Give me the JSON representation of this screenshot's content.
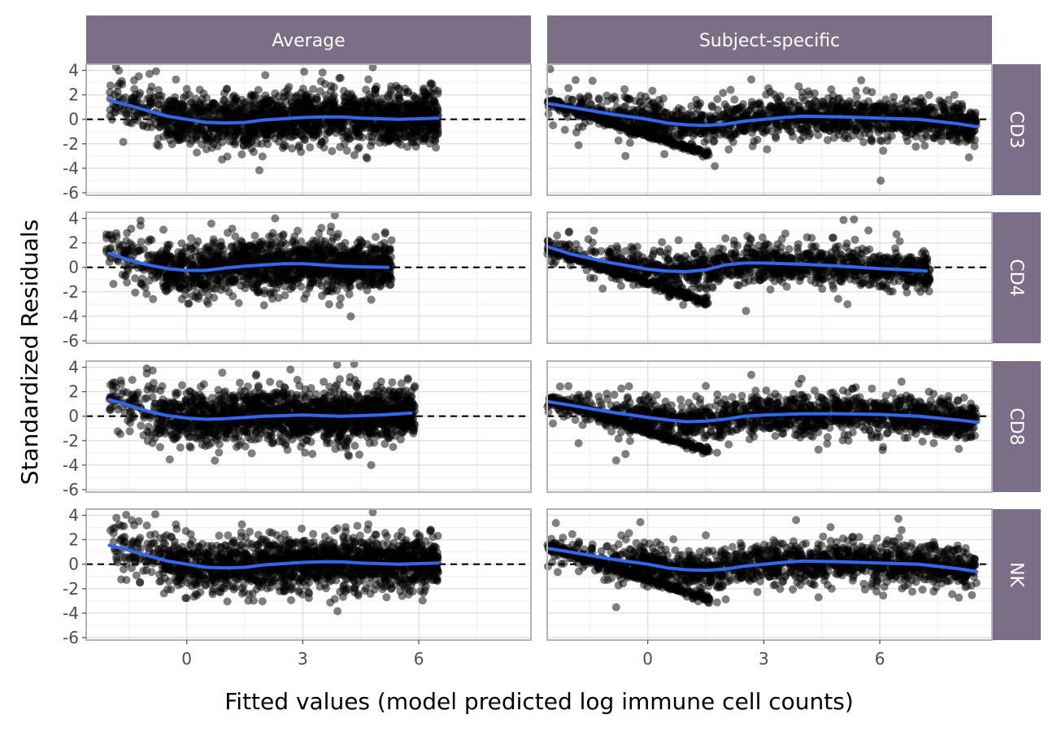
{
  "colors": {
    "strip": "#7b6e86",
    "points": "#000000",
    "smooth": "#3366ee",
    "panel_border": "#b3b3b3",
    "grid_major": "#dcdcdc",
    "grid_minor": "#efefef",
    "ref_line": "#000000",
    "tick_text": "#4d4d4d"
  },
  "chart_data": {
    "type": "scatter",
    "title": "",
    "xlabel": "Fitted values (model predicted log immune cell counts)",
    "ylabel": "Standardized Residuals",
    "facet_columns": [
      "Average",
      "Subject-specific"
    ],
    "facet_rows": [
      "CD3",
      "CD4",
      "CD8",
      "NK"
    ],
    "x_ticks": [
      0,
      3,
      6
    ],
    "y_ticks": [
      4,
      2,
      0,
      -2,
      -4,
      -6
    ],
    "xlim": [
      -2.6,
      8.9
    ],
    "ylim": [
      -6.2,
      4.5
    ],
    "reference_line": {
      "y": 0,
      "style": "dashed"
    },
    "grid": true,
    "legend": "none",
    "panels": [
      {
        "column": "Average",
        "row": "CD3",
        "x_range": [
          -2.0,
          6.5
        ],
        "n_points": 1700,
        "smooth": [
          [
            -2.0,
            1.55
          ],
          [
            -1.5,
            1.15
          ],
          [
            -1.0,
            0.7
          ],
          [
            -0.5,
            0.25
          ],
          [
            0.0,
            0.0
          ],
          [
            0.5,
            -0.25
          ],
          [
            1.0,
            -0.3
          ],
          [
            1.5,
            -0.25
          ],
          [
            2.0,
            -0.05
          ],
          [
            2.5,
            0.05
          ],
          [
            3.0,
            0.15
          ],
          [
            3.5,
            0.2
          ],
          [
            4.0,
            0.2
          ],
          [
            4.5,
            0.1
          ],
          [
            5.0,
            0.05
          ],
          [
            5.5,
            0.0
          ],
          [
            6.0,
            0.05
          ],
          [
            6.5,
            0.1
          ]
        ]
      },
      {
        "column": "Subject-specific",
        "row": "CD3",
        "x_range": [
          -2.6,
          8.5
        ],
        "n_points": 1700,
        "smooth": [
          [
            -2.6,
            1.3
          ],
          [
            -2.0,
            1.0
          ],
          [
            -1.0,
            0.45
          ],
          [
            0.0,
            0.0
          ],
          [
            0.5,
            -0.3
          ],
          [
            1.0,
            -0.45
          ],
          [
            1.5,
            -0.5
          ],
          [
            2.0,
            -0.4
          ],
          [
            2.5,
            -0.15
          ],
          [
            3.0,
            0.0
          ],
          [
            3.5,
            0.15
          ],
          [
            4.0,
            0.25
          ],
          [
            5.0,
            0.2
          ],
          [
            6.0,
            0.1
          ],
          [
            7.0,
            0.0
          ],
          [
            8.0,
            -0.35
          ],
          [
            8.5,
            -0.6
          ]
        ]
      },
      {
        "column": "Average",
        "row": "CD4",
        "x_range": [
          -2.1,
          5.3
        ],
        "n_points": 1400,
        "smooth": [
          [
            -2.0,
            1.15
          ],
          [
            -1.5,
            0.6
          ],
          [
            -1.0,
            0.2
          ],
          [
            -0.5,
            -0.1
          ],
          [
            0.0,
            -0.25
          ],
          [
            0.5,
            -0.25
          ],
          [
            1.0,
            -0.05
          ],
          [
            1.5,
            0.1
          ],
          [
            2.0,
            0.2
          ],
          [
            2.5,
            0.3
          ],
          [
            3.0,
            0.3
          ],
          [
            3.5,
            0.2
          ],
          [
            4.0,
            0.1
          ],
          [
            4.5,
            0.05
          ],
          [
            5.2,
            0.0
          ]
        ]
      },
      {
        "column": "Subject-specific",
        "row": "CD4",
        "x_range": [
          -2.6,
          7.3
        ],
        "n_points": 1400,
        "smooth": [
          [
            -2.6,
            1.7
          ],
          [
            -2.0,
            1.1
          ],
          [
            -1.0,
            0.4
          ],
          [
            0.0,
            -0.15
          ],
          [
            0.5,
            -0.3
          ],
          [
            1.0,
            -0.35
          ],
          [
            1.5,
            -0.2
          ],
          [
            2.0,
            0.2
          ],
          [
            2.5,
            0.35
          ],
          [
            3.0,
            0.35
          ],
          [
            4.0,
            0.25
          ],
          [
            5.0,
            0.1
          ],
          [
            6.0,
            -0.1
          ],
          [
            7.0,
            -0.25
          ],
          [
            7.2,
            -0.3
          ]
        ]
      },
      {
        "column": "Average",
        "row": "CD8",
        "x_range": [
          -2.0,
          5.9
        ],
        "n_points": 1700,
        "smooth": [
          [
            -2.0,
            1.35
          ],
          [
            -1.5,
            0.9
          ],
          [
            -1.0,
            0.4
          ],
          [
            -0.5,
            0.05
          ],
          [
            0.0,
            -0.15
          ],
          [
            0.5,
            -0.25
          ],
          [
            1.0,
            -0.2
          ],
          [
            1.5,
            -0.1
          ],
          [
            2.0,
            0.0
          ],
          [
            2.5,
            0.05
          ],
          [
            3.0,
            0.1
          ],
          [
            3.5,
            0.05
          ],
          [
            4.0,
            0.0
          ],
          [
            4.5,
            0.05
          ],
          [
            5.0,
            0.1
          ],
          [
            5.8,
            0.25
          ]
        ]
      },
      {
        "column": "Subject-specific",
        "row": "CD8",
        "x_range": [
          -2.6,
          8.5
        ],
        "n_points": 1700,
        "smooth": [
          [
            -2.6,
            1.2
          ],
          [
            -2.0,
            0.9
          ],
          [
            -1.0,
            0.35
          ],
          [
            0.0,
            -0.1
          ],
          [
            0.5,
            -0.3
          ],
          [
            1.0,
            -0.45
          ],
          [
            1.5,
            -0.4
          ],
          [
            2.0,
            -0.25
          ],
          [
            2.5,
            0.0
          ],
          [
            3.0,
            0.1
          ],
          [
            4.0,
            0.2
          ],
          [
            5.0,
            0.2
          ],
          [
            6.0,
            0.15
          ],
          [
            7.0,
            0.0
          ],
          [
            8.0,
            -0.3
          ],
          [
            8.5,
            -0.5
          ]
        ]
      },
      {
        "column": "Average",
        "row": "NK",
        "x_range": [
          -2.0,
          6.5
        ],
        "n_points": 1700,
        "smooth": [
          [
            -2.0,
            1.55
          ],
          [
            -1.5,
            1.15
          ],
          [
            -1.0,
            0.7
          ],
          [
            -0.5,
            0.25
          ],
          [
            0.0,
            0.0
          ],
          [
            0.5,
            -0.25
          ],
          [
            1.0,
            -0.3
          ],
          [
            1.5,
            -0.25
          ],
          [
            2.0,
            -0.05
          ],
          [
            2.5,
            0.05
          ],
          [
            3.0,
            0.15
          ],
          [
            3.5,
            0.2
          ],
          [
            4.0,
            0.2
          ],
          [
            4.5,
            0.1
          ],
          [
            5.0,
            0.05
          ],
          [
            5.5,
            0.0
          ],
          [
            6.0,
            0.05
          ],
          [
            6.5,
            0.1
          ]
        ]
      },
      {
        "column": "Subject-specific",
        "row": "NK",
        "x_range": [
          -2.6,
          8.5
        ],
        "n_points": 1700,
        "smooth": [
          [
            -2.6,
            1.3
          ],
          [
            -2.0,
            1.0
          ],
          [
            -1.0,
            0.45
          ],
          [
            0.0,
            0.0
          ],
          [
            0.5,
            -0.3
          ],
          [
            1.0,
            -0.45
          ],
          [
            1.5,
            -0.5
          ],
          [
            2.0,
            -0.4
          ],
          [
            2.5,
            -0.15
          ],
          [
            3.0,
            0.0
          ],
          [
            3.5,
            0.15
          ],
          [
            4.0,
            0.25
          ],
          [
            5.0,
            0.2
          ],
          [
            6.0,
            0.1
          ],
          [
            7.0,
            0.0
          ],
          [
            8.0,
            -0.35
          ],
          [
            8.5,
            -0.6
          ]
        ]
      }
    ]
  }
}
